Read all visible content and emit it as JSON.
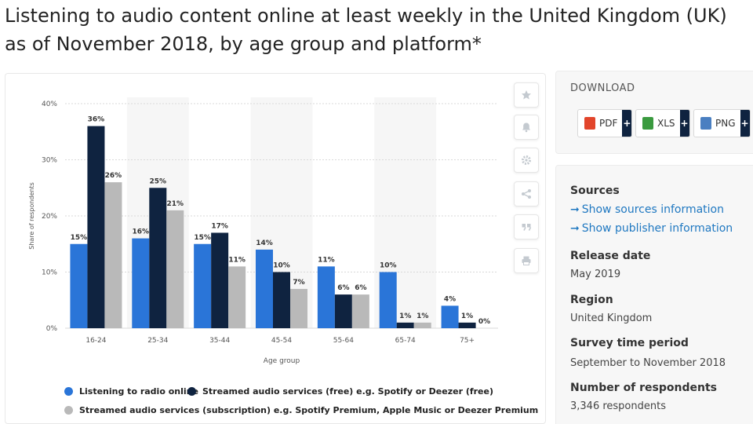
{
  "title": "Listening to audio content online at least weekly in the United Kingdom (UK) as of November 2018, by age group and platform*",
  "chart_data": {
    "type": "bar",
    "categories": [
      "16-24",
      "25-34",
      "35-44",
      "45-54",
      "55-64",
      "65-74",
      "75+"
    ],
    "series": [
      {
        "name": "Listening to radio online",
        "color": "#2a75d8",
        "values": [
          15,
          16,
          15,
          14,
          11,
          10,
          4
        ]
      },
      {
        "name": "Streamed audio services (free) e.g. Spotify or Deezer (free)",
        "color": "#0f2340",
        "values": [
          36,
          25,
          17,
          10,
          6,
          1,
          1
        ]
      },
      {
        "name": "Streamed audio services (subscription) e.g. Spotify Premium, Apple Music or Deezer Premium",
        "color": "#b9b9b9",
        "values": [
          26,
          21,
          11,
          7,
          6,
          1,
          0
        ]
      }
    ],
    "xlabel": "Age group",
    "ylabel": "Share of respondents",
    "ylim": [
      0,
      40
    ],
    "yticks": [
      "0%",
      "10%",
      "20%",
      "30%",
      "40%"
    ],
    "value_suffix": "%",
    "grid": true,
    "legend": "bottom"
  },
  "tools": [
    "star-icon",
    "bell-icon",
    "gear-icon",
    "share-icon",
    "quote-icon",
    "print-icon"
  ],
  "download": {
    "title": "DOWNLOAD",
    "buttons": [
      {
        "label": "PDF",
        "color": "#e2452b"
      },
      {
        "label": "XLS",
        "color": "#3a9a3f"
      },
      {
        "label": "PNG",
        "color": "#4a7fc1"
      }
    ],
    "plus": "+"
  },
  "info": {
    "sources_head": "Sources",
    "arrow": "➞",
    "show_sources": "Show sources information",
    "show_publisher": "Show publisher information",
    "release_head": "Release date",
    "release_val": "May 2019",
    "region_head": "Region",
    "region_val": "United Kingdom",
    "survey_head": "Survey time period",
    "survey_val": "September to November 2018",
    "respondents_head": "Number of respondents",
    "respondents_val": "3,346 respondents"
  }
}
